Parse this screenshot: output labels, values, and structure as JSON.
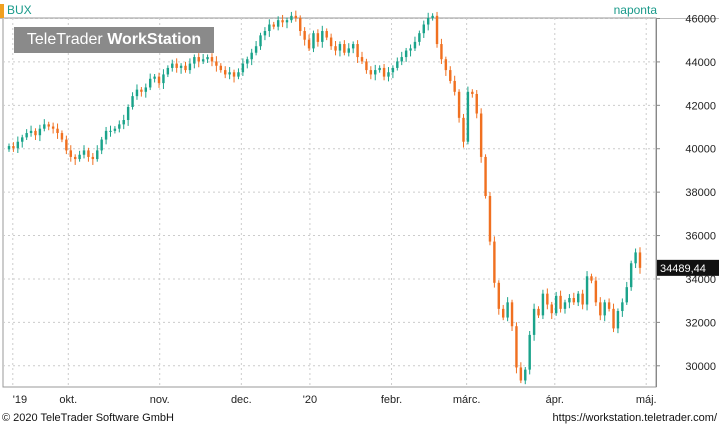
{
  "header": {
    "symbol": "BUX",
    "period": "naponta"
  },
  "watermark": {
    "brand_regular": "TeleTrader ",
    "brand_bold": "WorkStation"
  },
  "footer": {
    "copyright": "© 2020 TeleTrader Software GmbH",
    "url": "https://workstation.teletrader.com/"
  },
  "colors": {
    "up": "#1aa38a",
    "down": "#f07020",
    "accent": "#f0a020",
    "grid": "#cccccc"
  },
  "chart_data": {
    "type": "candlestick",
    "title": "BUX",
    "ylim": [
      29000,
      46000
    ],
    "y_ticks": [
      30000,
      32000,
      34000,
      36000,
      38000,
      40000,
      42000,
      44000,
      46000
    ],
    "x_labels": [
      "'19",
      "okt.",
      "nov.",
      "dec.",
      "'20",
      "febr.",
      "márc.",
      "ápr.",
      "máj."
    ],
    "last_value_label": "34489,44",
    "last_value": 34489.44,
    "grid": true,
    "series": [
      {
        "name": "BUX",
        "close": [
          40100,
          40000,
          40300,
          40500,
          40700,
          40800,
          40600,
          40900,
          41100,
          41000,
          40900,
          40700,
          40400,
          39900,
          39600,
          39500,
          39700,
          39900,
          39600,
          39500,
          39900,
          40400,
          40800,
          40800,
          40900,
          41100,
          41300,
          41900,
          42400,
          42700,
          42600,
          42800,
          43200,
          43300,
          43000,
          43400,
          43700,
          43900,
          43700,
          43800,
          43600,
          43900,
          44200,
          44000,
          44100,
          44200,
          44000,
          43800,
          43600,
          43400,
          43500,
          43300,
          43500,
          43900,
          44100,
          44400,
          44700,
          45200,
          45400,
          45700,
          45600,
          45900,
          45800,
          45900,
          46100,
          46000,
          45400,
          45000,
          44600,
          45300,
          44900,
          45400,
          45100,
          44700,
          44500,
          44800,
          44400,
          44600,
          44800,
          44200,
          44000,
          43600,
          43400,
          43600,
          43700,
          43300,
          43500,
          43700,
          44000,
          44200,
          44500,
          44600,
          44900,
          45300,
          45700,
          46000,
          46100,
          44800,
          44100,
          43600,
          43100,
          42600,
          41400,
          40300,
          42600,
          42500,
          41600,
          39600,
          37800,
          35700,
          33800,
          32600,
          32200,
          32900,
          31800,
          29900,
          29300,
          29800,
          31400,
          32600,
          32300,
          33300,
          32800,
          32400,
          33200,
          32600,
          32900,
          33100,
          32900,
          33300,
          32800,
          34100,
          33900,
          32900,
          32300,
          32900,
          32600,
          31700,
          32500,
          32900,
          33600,
          34700,
          35200,
          34489.44
        ]
      }
    ]
  }
}
